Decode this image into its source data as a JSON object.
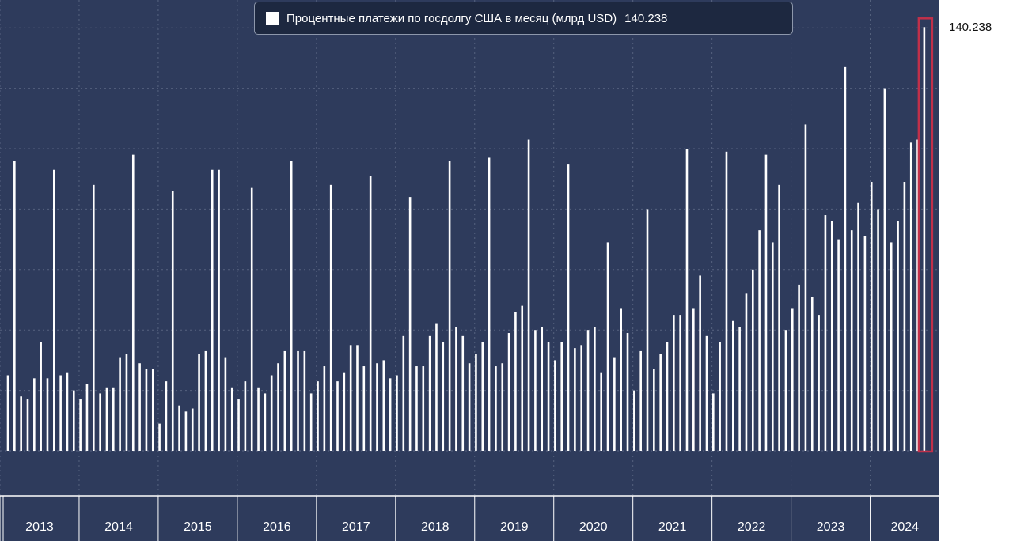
{
  "legend": {
    "label": "Процентные платежи по госдолгу США в месяц (млрд USD)",
    "last_value": "140.238"
  },
  "colors": {
    "plot_background": "#2e3b5c",
    "bar": "#ffffff",
    "highlight": "#c0304a"
  },
  "chart_data": {
    "type": "bar",
    "title": "",
    "xlabel": "",
    "ylabel": "",
    "ylim": [
      -15,
      143
    ],
    "yticks": [
      0,
      20,
      40,
      60,
      80,
      100,
      120
    ],
    "last_value_label": "140.238",
    "year_labels": [
      "2013",
      "2014",
      "2015",
      "2016",
      "2017",
      "2018",
      "2019",
      "2020",
      "2021",
      "2022",
      "2023",
      "2024"
    ],
    "highlight_last": true,
    "series": [
      {
        "name": "Процентные платежи по госдолгу США в месяц (млрд USD)",
        "values": [
          25,
          96,
          18,
          17,
          24,
          36,
          24,
          93,
          25,
          26,
          20,
          17,
          22,
          88,
          19,
          21,
          21,
          31,
          32,
          98,
          29,
          27,
          27,
          9,
          23,
          86,
          15,
          13,
          14,
          32,
          33,
          93,
          93,
          31,
          21,
          17,
          23,
          87,
          21,
          19,
          25,
          29,
          33,
          96,
          33,
          33,
          19,
          23,
          28,
          88,
          23,
          26,
          35,
          35,
          28,
          91,
          29,
          30,
          24,
          25,
          38,
          84,
          28,
          28,
          38,
          42,
          36,
          96,
          41,
          38,
          29,
          32,
          36,
          97,
          28,
          29,
          39,
          46,
          48,
          103,
          40,
          41,
          36,
          30,
          36,
          95,
          34,
          35,
          40,
          41,
          26,
          69,
          31,
          47,
          39,
          20,
          33,
          80,
          27,
          32,
          36,
          45,
          45,
          100,
          47,
          58,
          38,
          19,
          36,
          99,
          43,
          41,
          52,
          60,
          73,
          98,
          69,
          88,
          40,
          47,
          55,
          108,
          51,
          45,
          78,
          76,
          70,
          127,
          73,
          82,
          71,
          89,
          80,
          120,
          69,
          76,
          89,
          102,
          103,
          140.238
        ]
      }
    ]
  }
}
